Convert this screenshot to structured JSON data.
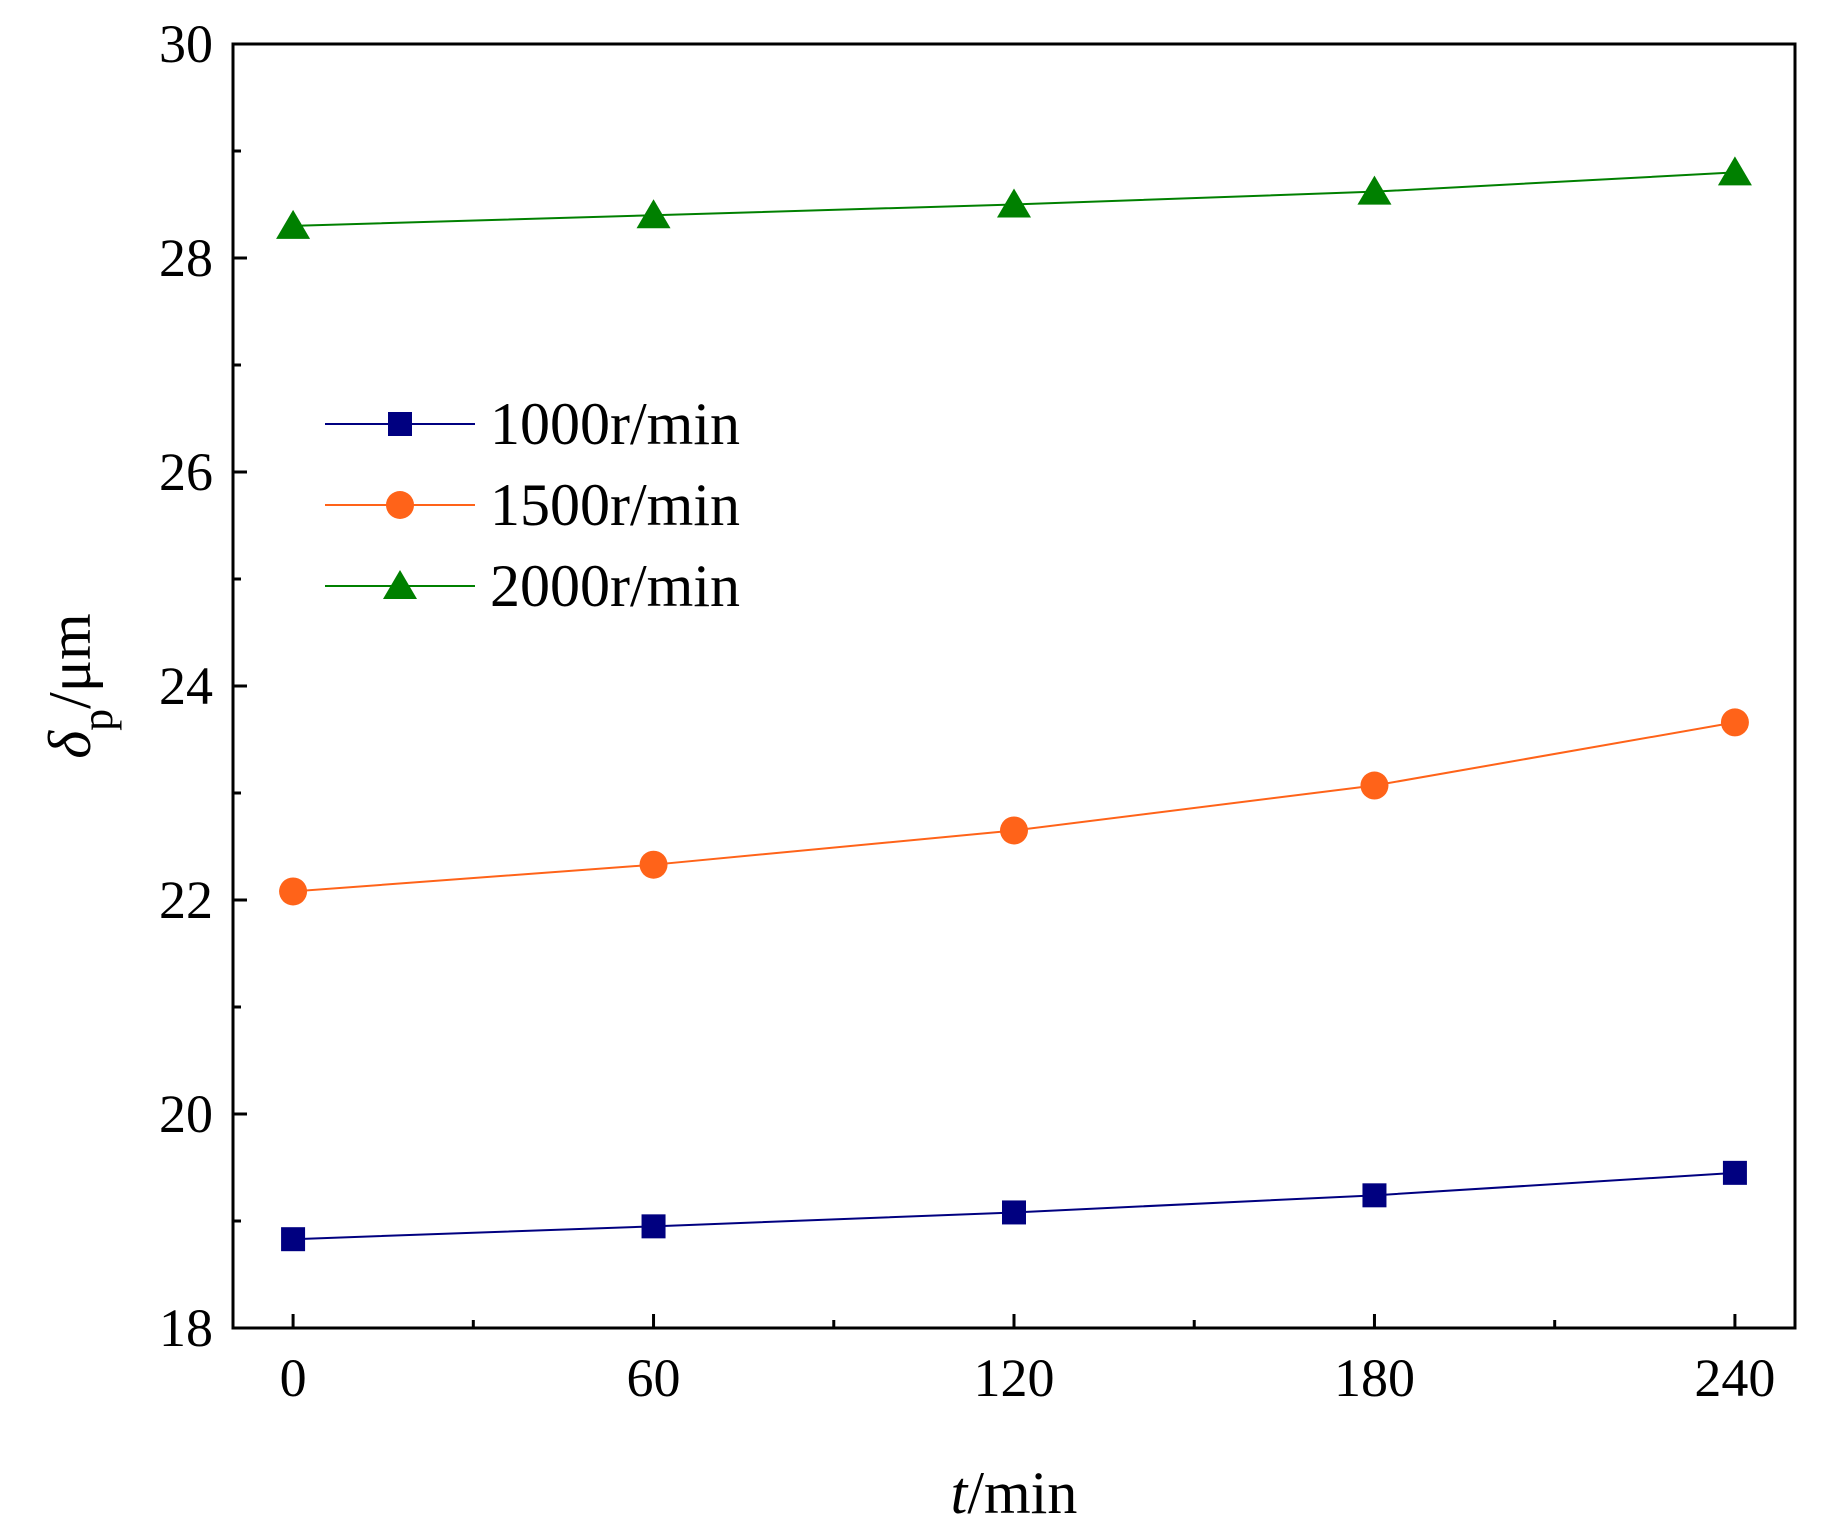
{
  "chart_data": {
    "type": "line",
    "title": "",
    "xlabel_italic": "t",
    "xlabel_unit": "/min",
    "ylabel_symbol": "δ",
    "ylabel_subscript": "p",
    "ylabel_unit": "/μm",
    "x": [
      0,
      60,
      120,
      180,
      240
    ],
    "xlim": [
      -10,
      250
    ],
    "ylim": [
      18,
      30
    ],
    "xticks": [
      0,
      60,
      120,
      180,
      240
    ],
    "xtick_labels": [
      "0",
      "60",
      "120",
      "180",
      "240"
    ],
    "xminor": [
      30,
      90,
      150,
      210
    ],
    "yticks": [
      18,
      20,
      22,
      24,
      26,
      28,
      30
    ],
    "ytick_labels": [
      "18",
      "20",
      "22",
      "24",
      "26",
      "28",
      "30"
    ],
    "yminor": [
      19,
      21,
      23,
      25,
      27,
      29
    ],
    "grid": false,
    "legend_position": "upper-left",
    "series": [
      {
        "name": "1000r/min",
        "marker": "square",
        "color": "#000080",
        "values": [
          18.83,
          18.95,
          19.08,
          19.24,
          19.45
        ]
      },
      {
        "name": "1500r/min",
        "marker": "circle",
        "color": "#FF6319",
        "values": [
          22.08,
          22.33,
          22.65,
          23.07,
          23.66
        ]
      },
      {
        "name": "2000r/min",
        "marker": "triangle",
        "color": "#008000",
        "values": [
          28.3,
          28.4,
          28.5,
          28.62,
          28.8
        ]
      }
    ]
  }
}
